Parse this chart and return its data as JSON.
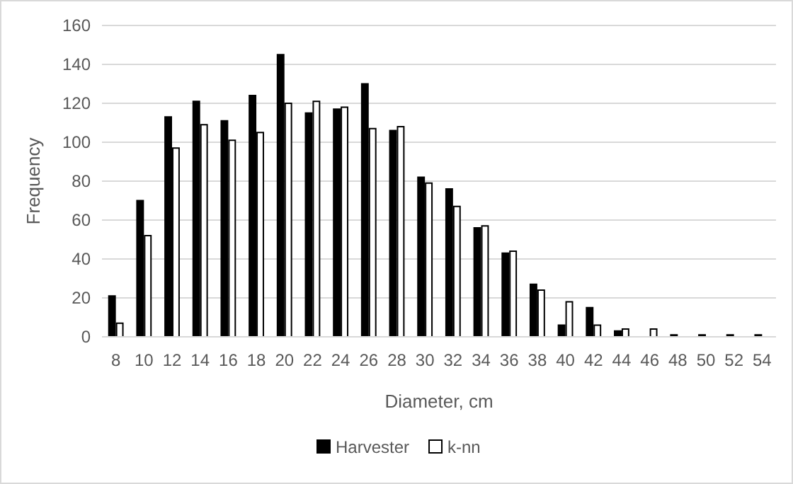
{
  "chart_data": {
    "type": "bar",
    "xlabel": "Diameter, cm",
    "ylabel": "Frequency",
    "categories": [
      "8",
      "10",
      "12",
      "14",
      "16",
      "18",
      "20",
      "22",
      "24",
      "26",
      "28",
      "30",
      "32",
      "34",
      "36",
      "38",
      "40",
      "42",
      "44",
      "46",
      "48",
      "50",
      "52",
      "54"
    ],
    "series": [
      {
        "name": "Harvester",
        "color": "#000000",
        "values": [
          21,
          70,
          113,
          121,
          111,
          124,
          145,
          115,
          117,
          130,
          106,
          82,
          76,
          56,
          43,
          27,
          6,
          15,
          3,
          0,
          1,
          1,
          1,
          1
        ]
      },
      {
        "name": "k-nn",
        "color": "#ffffff",
        "values": [
          7,
          52,
          97,
          109,
          101,
          105,
          120,
          121,
          118,
          107,
          108,
          79,
          67,
          57,
          44,
          24,
          18,
          6,
          4,
          4,
          0,
          0,
          0,
          0
        ]
      }
    ],
    "ylim": [
      0,
      160
    ],
    "yticks": [
      0,
      20,
      40,
      60,
      80,
      100,
      120,
      140,
      160
    ],
    "grid": "y",
    "legend": "bottom"
  }
}
